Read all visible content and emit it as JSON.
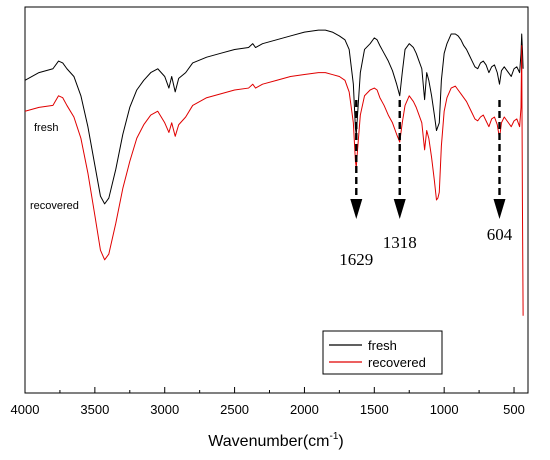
{
  "chart_data": {
    "type": "line",
    "xlabel": "Wavenumber(cm",
    "xlabel_superscript": "-1",
    "xlabel_close": ")",
    "xlim": [
      4000,
      400
    ],
    "ylim": [
      0,
      1
    ],
    "ticks": [
      "4000",
      "3500",
      "3000",
      "2500",
      "2000",
      "1500",
      "1000",
      "500"
    ],
    "y_ticks_labeled": false,
    "grid": false,
    "legend_position": "bottom-right",
    "series": [
      {
        "name": "fresh",
        "color": "#000000",
        "points": [
          [
            4000,
            0.81
          ],
          [
            3900,
            0.83
          ],
          [
            3800,
            0.84
          ],
          [
            3760,
            0.86
          ],
          [
            3730,
            0.855
          ],
          [
            3700,
            0.84
          ],
          [
            3650,
            0.82
          ],
          [
            3600,
            0.77
          ],
          [
            3550,
            0.69
          ],
          [
            3500,
            0.59
          ],
          [
            3460,
            0.51
          ],
          [
            3430,
            0.49
          ],
          [
            3400,
            0.505
          ],
          [
            3350,
            0.58
          ],
          [
            3300,
            0.67
          ],
          [
            3250,
            0.74
          ],
          [
            3200,
            0.785
          ],
          [
            3150,
            0.81
          ],
          [
            3100,
            0.83
          ],
          [
            3050,
            0.84
          ],
          [
            3000,
            0.82
          ],
          [
            2970,
            0.79
          ],
          [
            2950,
            0.82
          ],
          [
            2925,
            0.78
          ],
          [
            2900,
            0.815
          ],
          [
            2850,
            0.83
          ],
          [
            2800,
            0.855
          ],
          [
            2700,
            0.87
          ],
          [
            2600,
            0.88
          ],
          [
            2500,
            0.89
          ],
          [
            2400,
            0.895
          ],
          [
            2370,
            0.905
          ],
          [
            2350,
            0.895
          ],
          [
            2300,
            0.905
          ],
          [
            2200,
            0.915
          ],
          [
            2100,
            0.925
          ],
          [
            2000,
            0.935
          ],
          [
            1900,
            0.94
          ],
          [
            1850,
            0.94
          ],
          [
            1800,
            0.935
          ],
          [
            1750,
            0.925
          ],
          [
            1710,
            0.915
          ],
          [
            1680,
            0.89
          ],
          [
            1650,
            0.8
          ],
          [
            1635,
            0.685
          ],
          [
            1629,
            0.67
          ],
          [
            1620,
            0.72
          ],
          [
            1600,
            0.83
          ],
          [
            1570,
            0.89
          ],
          [
            1530,
            0.905
          ],
          [
            1500,
            0.92
          ],
          [
            1480,
            0.915
          ],
          [
            1460,
            0.9
          ],
          [
            1430,
            0.88
          ],
          [
            1400,
            0.86
          ],
          [
            1370,
            0.835
          ],
          [
            1340,
            0.8
          ],
          [
            1318,
            0.77
          ],
          [
            1300,
            0.83
          ],
          [
            1280,
            0.89
          ],
          [
            1250,
            0.905
          ],
          [
            1220,
            0.895
          ],
          [
            1200,
            0.88
          ],
          [
            1180,
            0.86
          ],
          [
            1160,
            0.84
          ],
          [
            1140,
            0.76
          ],
          [
            1125,
            0.83
          ],
          [
            1110,
            0.81
          ],
          [
            1090,
            0.77
          ],
          [
            1070,
            0.72
          ],
          [
            1055,
            0.68
          ],
          [
            1045,
            0.69
          ],
          [
            1035,
            0.7
          ],
          [
            1020,
            0.81
          ],
          [
            1000,
            0.88
          ],
          [
            980,
            0.905
          ],
          [
            950,
            0.93
          ],
          [
            920,
            0.93
          ],
          [
            900,
            0.925
          ],
          [
            880,
            0.915
          ],
          [
            860,
            0.9
          ],
          [
            840,
            0.89
          ],
          [
            820,
            0.875
          ],
          [
            800,
            0.86
          ],
          [
            780,
            0.845
          ],
          [
            760,
            0.84
          ],
          [
            740,
            0.855
          ],
          [
            720,
            0.86
          ],
          [
            700,
            0.85
          ],
          [
            680,
            0.83
          ],
          [
            660,
            0.845
          ],
          [
            640,
            0.85
          ],
          [
            620,
            0.83
          ],
          [
            604,
            0.8
          ],
          [
            590,
            0.835
          ],
          [
            570,
            0.845
          ],
          [
            550,
            0.835
          ],
          [
            520,
            0.82
          ],
          [
            500,
            0.84
          ],
          [
            480,
            0.845
          ],
          [
            460,
            0.83
          ],
          [
            450,
            0.88
          ],
          [
            445,
            0.93
          ],
          [
            440,
            0.89
          ],
          [
            435,
            0.84
          ]
        ]
      },
      {
        "name": "recovered",
        "color": "#e00000",
        "points": [
          [
            4000,
            0.73
          ],
          [
            3900,
            0.74
          ],
          [
            3800,
            0.745
          ],
          [
            3760,
            0.77
          ],
          [
            3730,
            0.765
          ],
          [
            3700,
            0.745
          ],
          [
            3650,
            0.715
          ],
          [
            3600,
            0.66
          ],
          [
            3550,
            0.57
          ],
          [
            3500,
            0.46
          ],
          [
            3460,
            0.37
          ],
          [
            3430,
            0.345
          ],
          [
            3400,
            0.36
          ],
          [
            3350,
            0.44
          ],
          [
            3300,
            0.53
          ],
          [
            3250,
            0.6
          ],
          [
            3200,
            0.66
          ],
          [
            3150,
            0.695
          ],
          [
            3100,
            0.72
          ],
          [
            3050,
            0.73
          ],
          [
            3000,
            0.7
          ],
          [
            2970,
            0.675
          ],
          [
            2950,
            0.7
          ],
          [
            2925,
            0.665
          ],
          [
            2900,
            0.695
          ],
          [
            2850,
            0.715
          ],
          [
            2800,
            0.745
          ],
          [
            2700,
            0.765
          ],
          [
            2600,
            0.775
          ],
          [
            2500,
            0.785
          ],
          [
            2400,
            0.79
          ],
          [
            2370,
            0.8
          ],
          [
            2350,
            0.79
          ],
          [
            2300,
            0.8
          ],
          [
            2200,
            0.81
          ],
          [
            2100,
            0.82
          ],
          [
            2000,
            0.825
          ],
          [
            1900,
            0.83
          ],
          [
            1850,
            0.83
          ],
          [
            1800,
            0.825
          ],
          [
            1750,
            0.82
          ],
          [
            1710,
            0.81
          ],
          [
            1680,
            0.78
          ],
          [
            1650,
            0.7
          ],
          [
            1635,
            0.6
          ],
          [
            1629,
            0.585
          ],
          [
            1620,
            0.63
          ],
          [
            1600,
            0.72
          ],
          [
            1570,
            0.77
          ],
          [
            1530,
            0.785
          ],
          [
            1500,
            0.79
          ],
          [
            1480,
            0.785
          ],
          [
            1460,
            0.765
          ],
          [
            1430,
            0.745
          ],
          [
            1400,
            0.72
          ],
          [
            1370,
            0.7
          ],
          [
            1340,
            0.67
          ],
          [
            1318,
            0.65
          ],
          [
            1300,
            0.7
          ],
          [
            1280,
            0.745
          ],
          [
            1250,
            0.77
          ],
          [
            1220,
            0.755
          ],
          [
            1200,
            0.74
          ],
          [
            1180,
            0.72
          ],
          [
            1160,
            0.7
          ],
          [
            1140,
            0.63
          ],
          [
            1125,
            0.68
          ],
          [
            1110,
            0.66
          ],
          [
            1090,
            0.61
          ],
          [
            1070,
            0.55
          ],
          [
            1055,
            0.5
          ],
          [
            1045,
            0.505
          ],
          [
            1035,
            0.52
          ],
          [
            1020,
            0.64
          ],
          [
            1000,
            0.73
          ],
          [
            980,
            0.765
          ],
          [
            950,
            0.79
          ],
          [
            920,
            0.795
          ],
          [
            900,
            0.785
          ],
          [
            880,
            0.775
          ],
          [
            860,
            0.765
          ],
          [
            840,
            0.755
          ],
          [
            820,
            0.74
          ],
          [
            800,
            0.725
          ],
          [
            780,
            0.71
          ],
          [
            760,
            0.705
          ],
          [
            740,
            0.715
          ],
          [
            720,
            0.72
          ],
          [
            700,
            0.705
          ],
          [
            680,
            0.69
          ],
          [
            660,
            0.71
          ],
          [
            640,
            0.715
          ],
          [
            620,
            0.695
          ],
          [
            604,
            0.66
          ],
          [
            590,
            0.7
          ],
          [
            570,
            0.715
          ],
          [
            550,
            0.705
          ],
          [
            520,
            0.69
          ],
          [
            500,
            0.705
          ],
          [
            480,
            0.71
          ],
          [
            460,
            0.69
          ],
          [
            450,
            0.74
          ],
          [
            445,
            0.9
          ],
          [
            440,
            0.5
          ],
          [
            435,
            0.2
          ]
        ]
      }
    ],
    "series_labels": [
      "fresh",
      "recovered"
    ],
    "peak_annotations": [
      {
        "x": 1629,
        "label": "1629"
      },
      {
        "x": 1318,
        "label": "1318"
      },
      {
        "x": 604,
        "label": "604"
      }
    ]
  }
}
